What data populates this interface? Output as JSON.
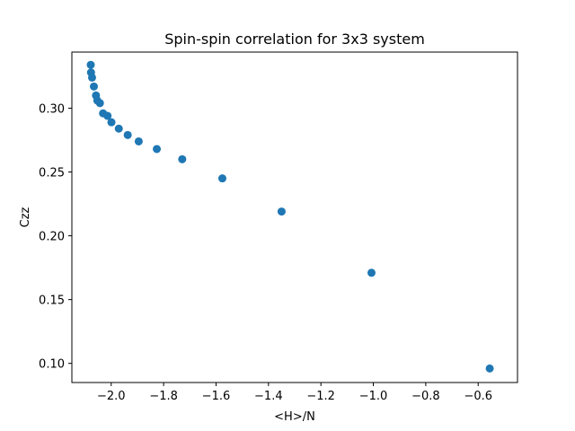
{
  "chart_data": {
    "type": "scatter",
    "title": "Spin-spin correlation for 3x3 system",
    "xlabel": "<H>/N",
    "ylabel": "Czz",
    "xlim": [
      -2.15,
      -0.45
    ],
    "ylim": [
      0.085,
      0.344
    ],
    "x_ticks": [
      -2.0,
      -1.8,
      -1.6,
      -1.4,
      -1.2,
      -1.0,
      -0.8,
      -0.6
    ],
    "x_tick_labels": [
      "−2.0",
      "−1.8",
      "−1.6",
      "−1.4",
      "−1.2",
      "−1.0",
      "−0.8",
      "−0.6"
    ],
    "y_ticks": [
      0.1,
      0.15,
      0.2,
      0.25,
      0.3
    ],
    "y_tick_labels": [
      "0.10",
      "0.15",
      "0.20",
      "0.25",
      "0.30"
    ],
    "grid": false,
    "legend": "none",
    "marker_color": "#1f77b4",
    "series": [
      {
        "points": [
          [
            -2.078,
            0.334
          ],
          [
            -2.077,
            0.328
          ],
          [
            -2.073,
            0.324
          ],
          [
            -2.066,
            0.317
          ],
          [
            -2.058,
            0.31
          ],
          [
            -2.053,
            0.306
          ],
          [
            -2.043,
            0.304
          ],
          [
            -2.031,
            0.296
          ],
          [
            -2.014,
            0.294
          ],
          [
            -1.999,
            0.289
          ],
          [
            -1.971,
            0.284
          ],
          [
            -1.937,
            0.279
          ],
          [
            -1.895,
            0.274
          ],
          [
            -1.826,
            0.268
          ],
          [
            -1.729,
            0.26
          ],
          [
            -1.576,
            0.245
          ],
          [
            -1.35,
            0.219
          ],
          [
            -1.007,
            0.171
          ],
          [
            -0.556,
            0.096
          ]
        ]
      }
    ]
  }
}
